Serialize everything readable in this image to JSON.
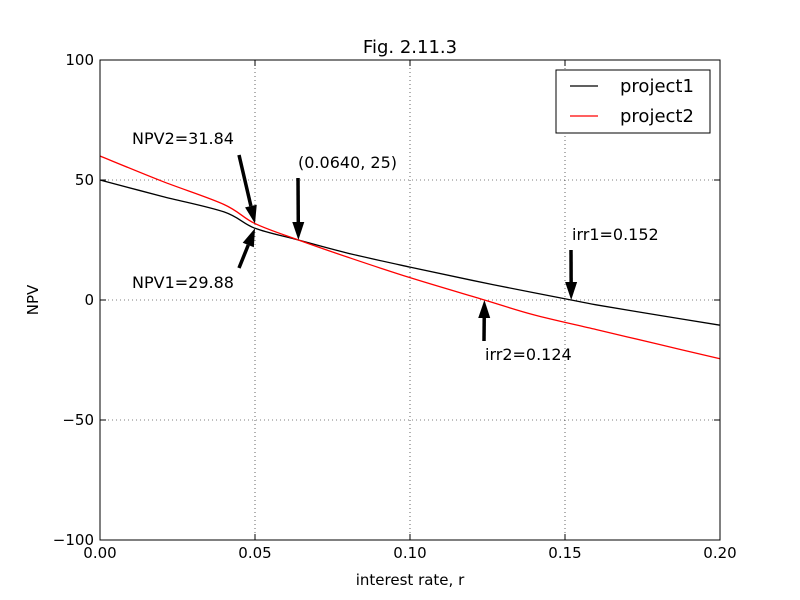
{
  "chart_data": {
    "type": "line",
    "title": "Fig. 2.11.3",
    "xlabel": "interest rate, r",
    "ylabel": "NPV",
    "xlim": [
      0.0,
      0.2
    ],
    "ylim": [
      -100,
      100
    ],
    "xticks": [
      0.0,
      0.05,
      0.1,
      0.15,
      0.2
    ],
    "xtick_labels": [
      "0.00",
      "0.05",
      "0.10",
      "0.15",
      "0.20"
    ],
    "yticks": [
      -100,
      -50,
      0,
      50,
      100
    ],
    "ytick_labels": [
      "−100",
      "−50",
      "0",
      "50",
      "100"
    ],
    "grid": true,
    "grid_style": "dotted",
    "legend_position": "top-right",
    "series": [
      {
        "name": "project1",
        "color": "#000000",
        "x": [
          0.0,
          0.02,
          0.04,
          0.05,
          0.064,
          0.08,
          0.1,
          0.12,
          0.14,
          0.152,
          0.16,
          0.18,
          0.2
        ],
        "y": [
          50,
          43.2,
          36.7,
          29.88,
          25,
          19.5,
          13.7,
          8.2,
          3.0,
          0,
          -2.0,
          -6.3,
          -10.5
        ]
      },
      {
        "name": "project2",
        "color": "#ff0000",
        "x": [
          0.0,
          0.02,
          0.04,
          0.05,
          0.064,
          0.08,
          0.1,
          0.124,
          0.14,
          0.16,
          0.18,
          0.2
        ],
        "y": [
          60,
          49.5,
          39.8,
          31.84,
          25,
          17.8,
          9.3,
          0,
          -6.2,
          -12.3,
          -18.4,
          -24.5
        ]
      }
    ],
    "annotations": [
      {
        "text": "NPV2=31.84",
        "target": [
          0.05,
          31.84
        ],
        "text_at": [
          0.01,
          65
        ]
      },
      {
        "text": "(0.0640, 25)",
        "target": [
          0.064,
          25
        ],
        "text_at": [
          0.064,
          55
        ]
      },
      {
        "text": "NPV1=29.88",
        "target": [
          0.05,
          29.88
        ],
        "text_at": [
          0.01,
          5
        ]
      },
      {
        "text": "irr1=0.152",
        "target": [
          0.152,
          0
        ],
        "text_at": [
          0.152,
          25
        ]
      },
      {
        "text": "irr2=0.124",
        "target": [
          0.124,
          0
        ],
        "text_at": [
          0.124,
          -25
        ]
      }
    ]
  }
}
